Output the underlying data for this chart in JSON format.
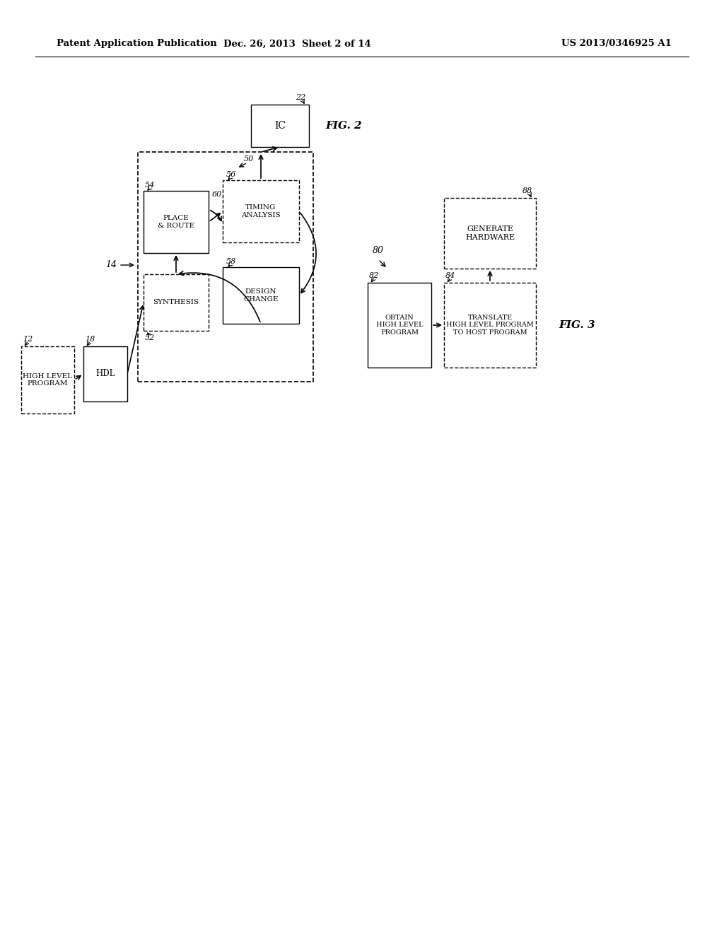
{
  "bg_color": "#ffffff",
  "header_left": "Patent Application Publication",
  "header_mid": "Dec. 26, 2013  Sheet 2 of 14",
  "header_right": "US 2013/0346925 A1"
}
